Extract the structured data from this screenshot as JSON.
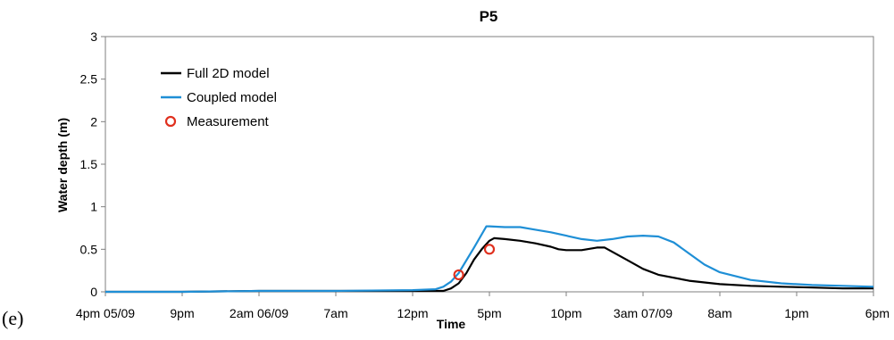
{
  "panel_label": "(e)",
  "chart_data": {
    "type": "line",
    "title": "P5",
    "xlabel": "Time",
    "ylabel": "Water depth (m)",
    "x_ticks": [
      "4pm 05/09",
      "9pm",
      "2am 06/09",
      "7am",
      "12pm",
      "5pm",
      "10pm",
      "3am 07/09",
      "8am",
      "1pm",
      "6pm"
    ],
    "xlim": [
      0,
      50
    ],
    "ylim": [
      0,
      3
    ],
    "y_ticks": [
      0,
      0.5,
      1,
      1.5,
      2,
      2.5,
      3
    ],
    "grid": false,
    "legend_position": "top-left",
    "series": [
      {
        "name": "Full 2D model",
        "style": "line",
        "color": "#000000",
        "x": [
          0,
          5,
          10,
          15,
          20,
          22,
          22.5,
          23,
          23.5,
          24,
          24.5,
          25,
          25.3,
          26,
          27,
          28,
          29,
          29.5,
          30,
          31,
          32,
          32.5,
          33,
          34,
          35,
          36,
          38,
          40,
          42,
          44,
          46,
          48,
          50
        ],
        "y": [
          0,
          0,
          0.01,
          0.01,
          0.01,
          0.01,
          0.04,
          0.1,
          0.22,
          0.38,
          0.5,
          0.6,
          0.63,
          0.62,
          0.6,
          0.57,
          0.53,
          0.5,
          0.49,
          0.49,
          0.52,
          0.52,
          0.47,
          0.37,
          0.27,
          0.2,
          0.13,
          0.09,
          0.07,
          0.06,
          0.05,
          0.04,
          0.04
        ]
      },
      {
        "name": "Coupled model",
        "style": "line",
        "color": "#1f8fd6",
        "x": [
          0,
          5,
          10,
          15,
          20,
          21.5,
          22,
          22.5,
          23,
          24,
          24.8,
          25,
          26,
          27,
          28,
          29,
          30,
          31,
          32,
          33,
          34,
          35,
          36,
          37,
          38,
          39,
          40,
          42,
          44,
          46,
          48,
          50
        ],
        "y": [
          0,
          0,
          0.01,
          0.01,
          0.02,
          0.03,
          0.06,
          0.12,
          0.22,
          0.52,
          0.77,
          0.77,
          0.76,
          0.76,
          0.73,
          0.7,
          0.66,
          0.62,
          0.6,
          0.62,
          0.65,
          0.66,
          0.65,
          0.58,
          0.45,
          0.32,
          0.23,
          0.14,
          0.1,
          0.08,
          0.07,
          0.06
        ]
      },
      {
        "name": "Measurement",
        "style": "marker",
        "color": "#e0301e",
        "x": [
          23,
          25
        ],
        "y": [
          0.2,
          0.5
        ]
      }
    ]
  }
}
